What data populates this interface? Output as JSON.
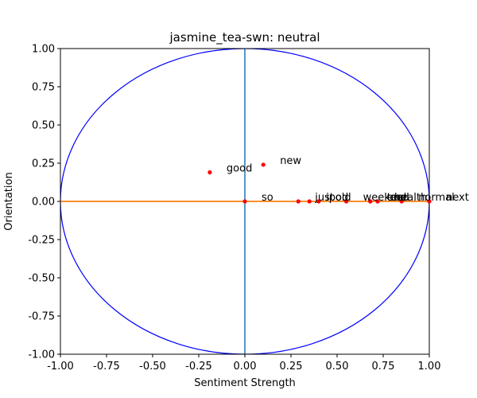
{
  "chart_data": {
    "type": "scatter",
    "title": "jasmine_tea-swn: neutral",
    "xlabel": "Sentiment Strength",
    "ylabel": "Orientation",
    "xlim": [
      -1.0,
      1.0
    ],
    "ylim": [
      -1.0,
      1.0
    ],
    "x_ticks": [
      "-1.00",
      "-0.75",
      "-0.50",
      "-0.25",
      "0.00",
      "0.25",
      "0.50",
      "0.75",
      "1.00"
    ],
    "y_ticks": [
      "1.00",
      "0.75",
      "0.50",
      "0.25",
      "0.00",
      "-0.25",
      "-0.50",
      "-0.75",
      "-1.00"
    ],
    "grid": false,
    "unit_circle": true,
    "points": [
      {
        "label": "good",
        "x": -0.19,
        "y": 0.19
      },
      {
        "label": "new",
        "x": 0.1,
        "y": 0.24
      },
      {
        "label": "so",
        "x": 0.0,
        "y": 0.0
      },
      {
        "label": "just",
        "x": 0.29,
        "y": 0.0
      },
      {
        "label": "ipod",
        "x": 0.35,
        "y": 0.0
      },
      {
        "label": "old",
        "x": 0.4,
        "y": 0.0
      },
      {
        "label": "weekend",
        "x": 0.55,
        "y": 0.0
      },
      {
        "label": "end",
        "x": 0.68,
        "y": 0.0
      },
      {
        "label": "tea",
        "x": 0.68,
        "y": 0.0
      },
      {
        "label": "health",
        "x": 0.72,
        "y": 0.0
      },
      {
        "label": "normal",
        "x": 0.85,
        "y": 0.0
      },
      {
        "label": "next",
        "x": 1.0,
        "y": 0.0
      }
    ],
    "colors": {
      "points": "#ff0000",
      "circle": "#0000ff",
      "vertical_line": "#1f77b4",
      "horizontal_line": "#ff7f0e"
    }
  }
}
